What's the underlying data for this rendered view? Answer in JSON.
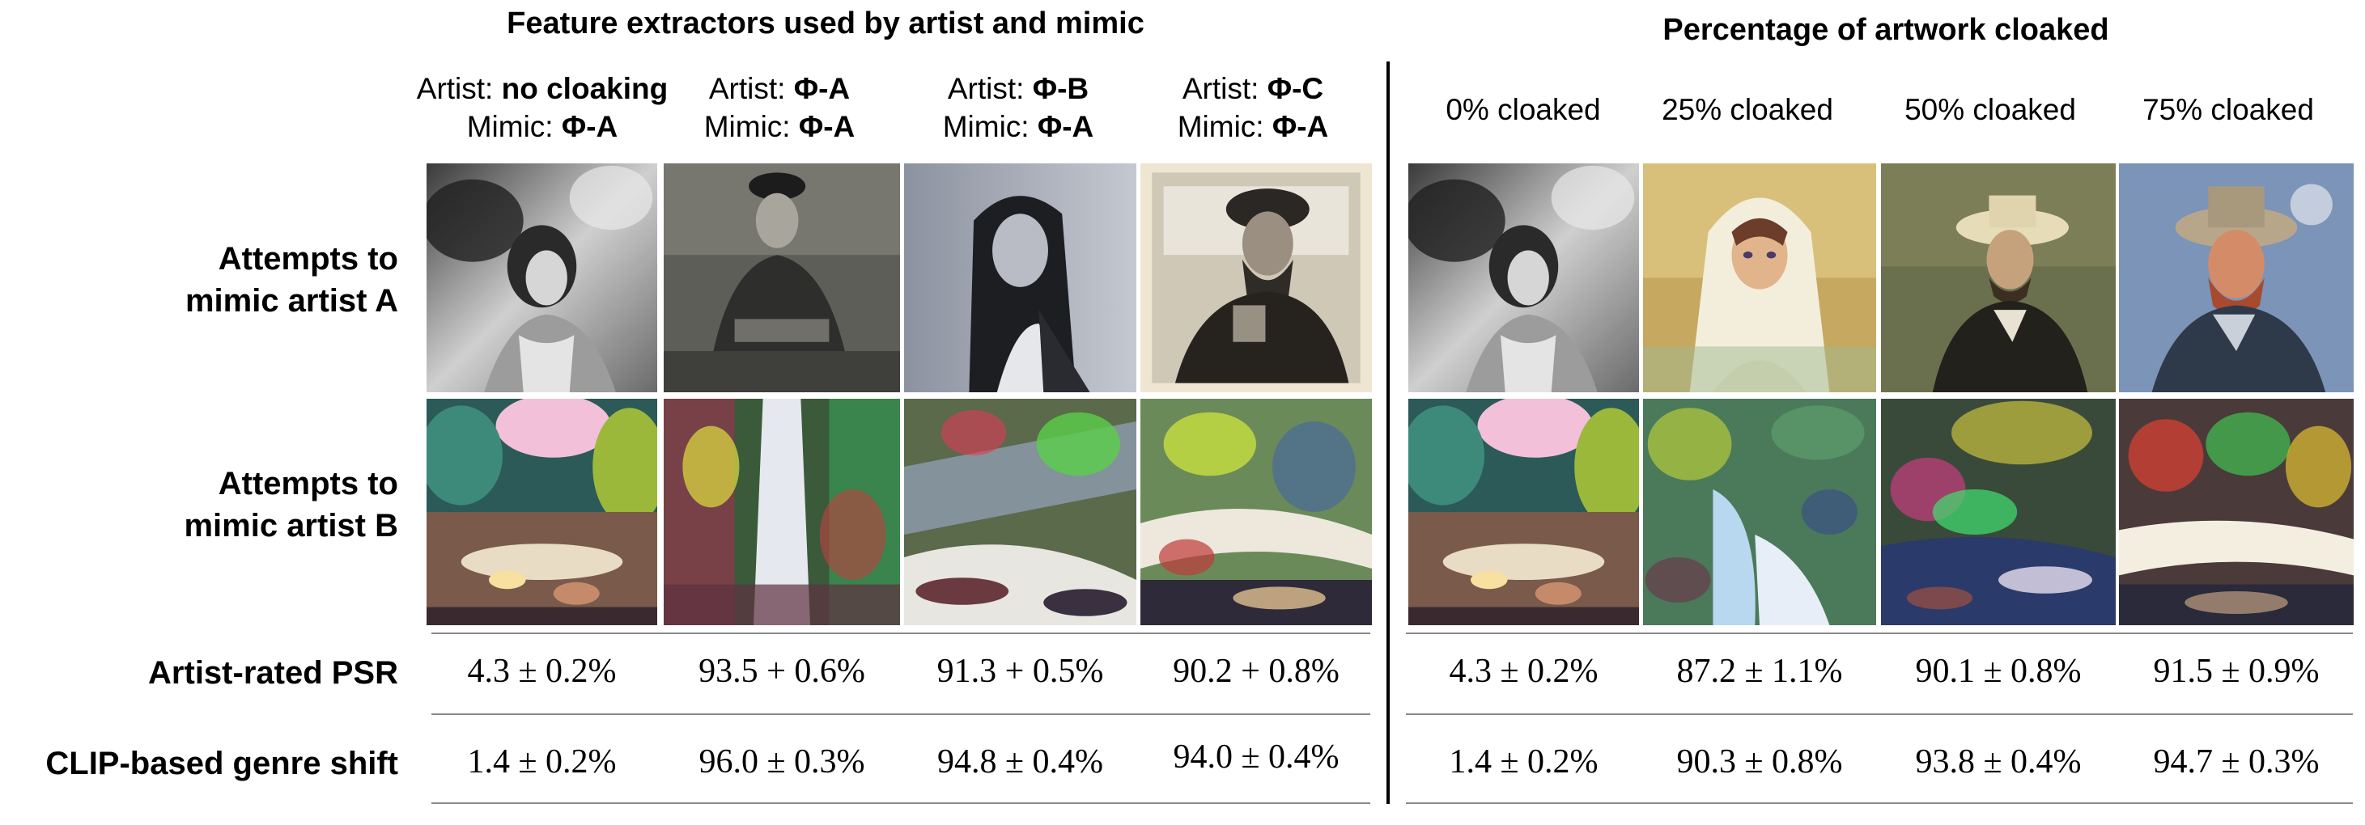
{
  "titles": {
    "left": "Feature extractors used by artist and mimic",
    "right": "Percentage of artwork cloaked"
  },
  "left_columns": [
    {
      "artist_prefix": "Artist: ",
      "artist_value": "no cloaking",
      "mimic_prefix": "Mimic: ",
      "mimic_value": "Φ-A"
    },
    {
      "artist_prefix": "Artist: ",
      "artist_value": "Φ-A",
      "mimic_prefix": "Mimic: ",
      "mimic_value": "Φ-A"
    },
    {
      "artist_prefix": "Artist: ",
      "artist_value": "Φ-B",
      "mimic_prefix": "Mimic: ",
      "mimic_value": "Φ-A"
    },
    {
      "artist_prefix": "Artist: ",
      "artist_value": "Φ-C",
      "mimic_prefix": "Mimic: ",
      "mimic_value": "Φ-A"
    }
  ],
  "right_columns": [
    "0% cloaked",
    "25% cloaked",
    "50% cloaked",
    "75% cloaked"
  ],
  "rows": {
    "artist_a": [
      "Attempts to",
      "mimic artist A"
    ],
    "artist_b": [
      "Attempts to",
      "mimic artist B"
    ],
    "psr": "Artist-rated PSR",
    "clip": "CLIP-based genre shift"
  },
  "metrics": {
    "psr_left": [
      "4.3 ± 0.2%",
      "93.5 + 0.6%",
      "91.3 + 0.5%",
      "90.2 + 0.8%"
    ],
    "psr_right": [
      "4.3 ± 0.2%",
      "87.2 ± 1.1%",
      "90.1 ± 0.8%",
      "91.5 ± 0.9%"
    ],
    "clip_left": [
      "1.4 ± 0.2%",
      "96.0 ± 0.3%",
      "94.8 ± 0.4%",
      "94.0 ± 0.4%"
    ],
    "clip_right": [
      "1.4 ± 0.2%",
      "90.3 ± 0.8%",
      "93.8 ± 0.4%",
      "94.7 ± 0.3%"
    ]
  },
  "images": {
    "artist_a": [
      "grayscale woman portrait",
      "grayscale seated man portrait",
      "grayscale long-haired man portrait",
      "grayscale bearded man with cap portrait",
      "grayscale woman portrait",
      "colorful hooded girl portrait",
      "man with straw hat portrait",
      "bearded man with hat portrait"
    ],
    "artist_b": [
      "landscape with river and rocks",
      "distorted colorful landscape",
      "distorted colorful landscape",
      "distorted colorful landscape",
      "landscape with river and rocks",
      "colorful stream landscape",
      "colorful distorted landscape",
      "colorful distorted landscape"
    ]
  }
}
